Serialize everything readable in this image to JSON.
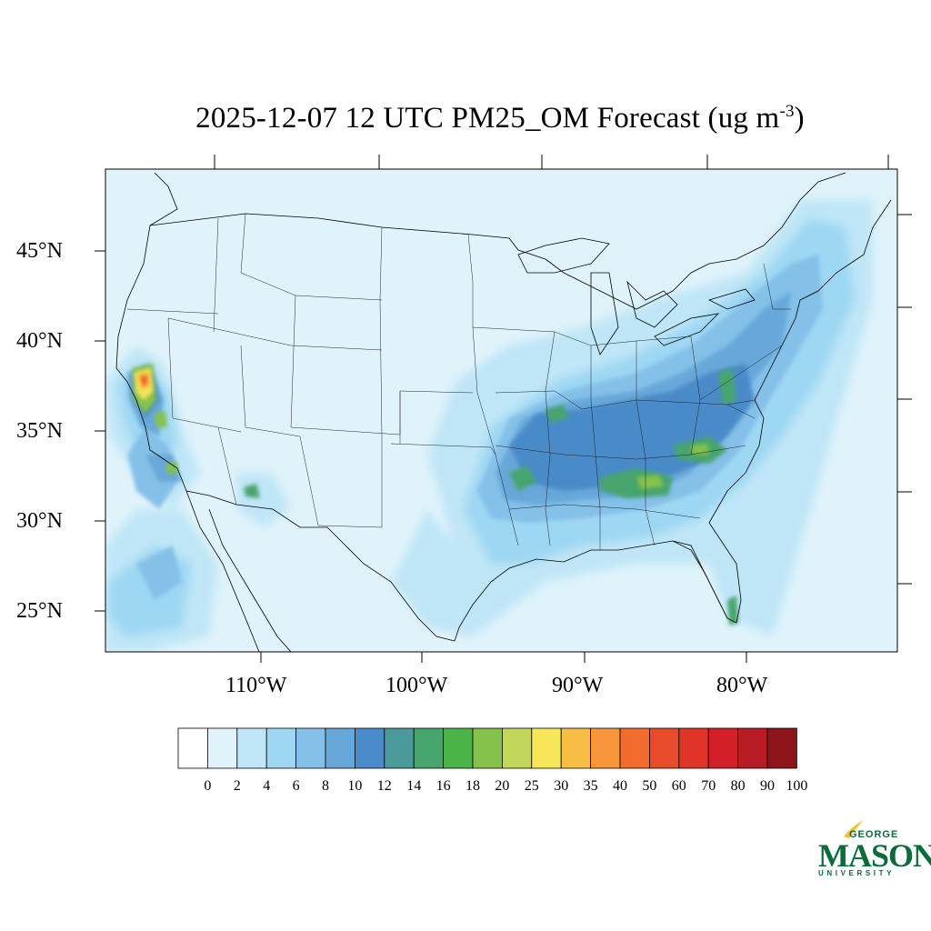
{
  "title": {
    "text": "2025-12-07 12 UTC PM25_OM Forecast (ug m",
    "exponent": "-3",
    "close": ")"
  },
  "lat_labels": [
    "45°N",
    "40°N",
    "35°N",
    "30°N",
    "25°N"
  ],
  "lon_labels": [
    "110°W",
    "100°W",
    "90°W",
    "80°W"
  ],
  "colorbar": {
    "labels": [
      "0",
      "2",
      "4",
      "6",
      "8",
      "10",
      "12",
      "14",
      "16",
      "18",
      "20",
      "25",
      "30",
      "35",
      "40",
      "50",
      "60",
      "70",
      "80",
      "90",
      "100"
    ],
    "colors": [
      "#ffffff",
      "#e0f3fb",
      "#bfe6f7",
      "#9dd7f3",
      "#84c0e8",
      "#68a7da",
      "#4a8bc9",
      "#4a9a9c",
      "#47a46d",
      "#4bb447",
      "#84c24b",
      "#c2d65a",
      "#f8e65a",
      "#f7bd47",
      "#f7963b",
      "#f26b2f",
      "#e84c2c",
      "#df3427",
      "#d21f28",
      "#b71c24",
      "#8e161b"
    ]
  },
  "map_colors": {
    "background": "#e0f3fb",
    "border": "#000000"
  },
  "logo": {
    "george": "GEORGE",
    "mason": "MASON",
    "university": "UNIVERSITY",
    "color": "#0b6b3a",
    "accent": "#f2c32e"
  }
}
